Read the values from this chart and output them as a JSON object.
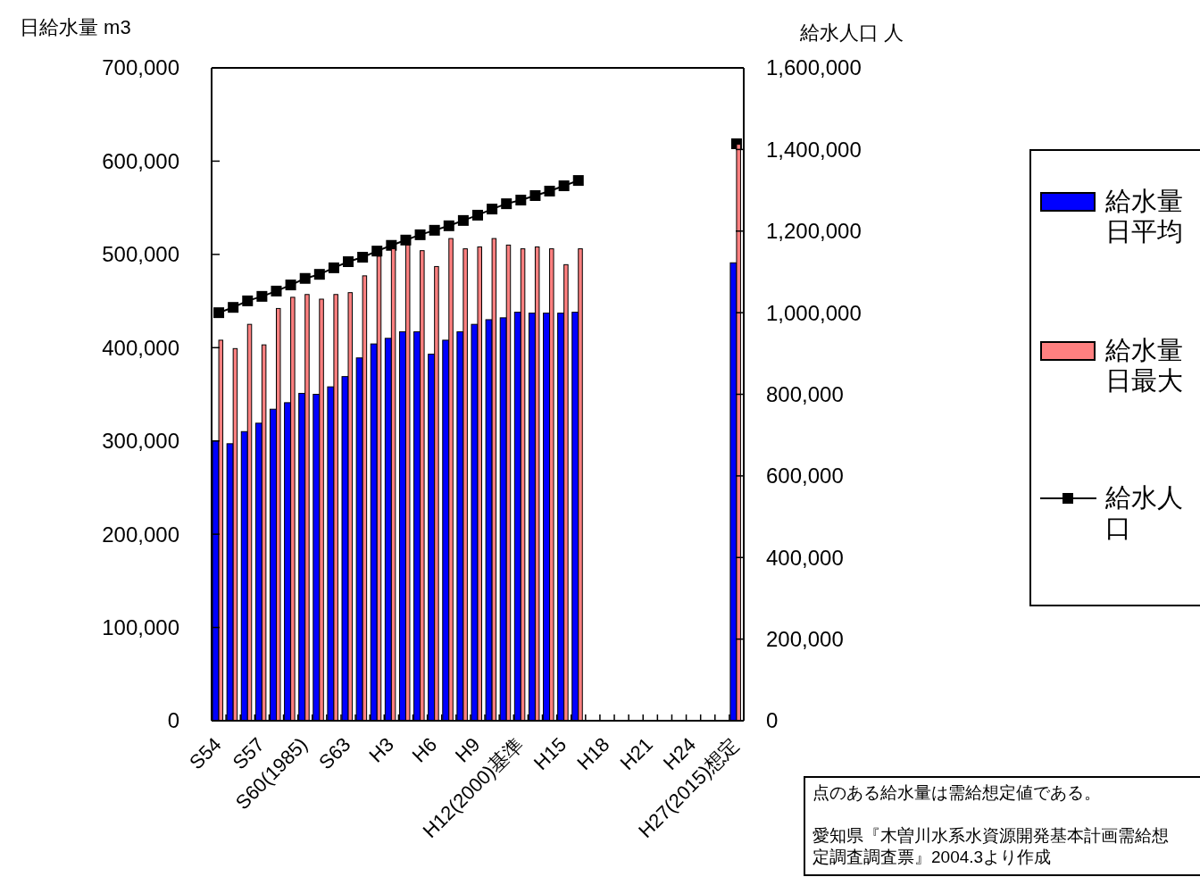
{
  "chart_data": {
    "type": "bar",
    "ylabel": "日給水量 m3",
    "y2label": "給水人口 人",
    "categories": [
      "S54",
      null,
      null,
      "S57",
      null,
      null,
      "S60(1985)",
      null,
      null,
      "S63",
      null,
      null,
      "H3",
      null,
      null,
      "H6",
      null,
      null,
      "H9",
      null,
      null,
      "H12(2000)基準",
      null,
      null,
      "H15",
      null,
      null,
      "H18",
      null,
      null,
      "H21",
      null,
      null,
      "H24",
      null,
      null,
      "H27(2015)想定"
    ],
    "series": [
      {
        "name": "給水量日平均",
        "color": "#0000ff",
        "values": [
          300000,
          297000,
          310000,
          319000,
          334000,
          341000,
          351000,
          350000,
          358000,
          369000,
          389000,
          404000,
          410000,
          417000,
          417000,
          393000,
          408000,
          417000,
          425000,
          430000,
          432000,
          438000,
          437000,
          437000,
          437000,
          438000,
          null,
          null,
          null,
          null,
          null,
          null,
          null,
          null,
          null,
          null,
          491000
        ]
      },
      {
        "name": "給水量日最大",
        "color": "#ff8080",
        "values": [
          408000,
          399000,
          425000,
          403000,
          442000,
          454000,
          457000,
          452000,
          457000,
          459000,
          477000,
          498000,
          506000,
          510000,
          504000,
          487000,
          517000,
          506000,
          508000,
          517000,
          510000,
          506000,
          508000,
          506000,
          489000,
          506000,
          null,
          null,
          null,
          null,
          null,
          null,
          null,
          null,
          null,
          null,
          618000
        ]
      },
      {
        "name": "給水人口",
        "type": "line",
        "axis": "y2",
        "color": "#000000",
        "values": [
          1000000,
          1013000,
          1029000,
          1040000,
          1053000,
          1068000,
          1084000,
          1094000,
          1110000,
          1125000,
          1136000,
          1151000,
          1165000,
          1178000,
          1191000,
          1202000,
          1213000,
          1226000,
          1239000,
          1254000,
          1267000,
          1276000,
          1287000,
          1298000,
          1311000,
          1324000,
          null,
          null,
          null,
          null,
          null,
          null,
          null,
          null,
          null,
          null,
          1414000
        ]
      }
    ],
    "ylim": [
      0,
      700000
    ],
    "yticks": [
      {
        "value": 0,
        "label": "0"
      },
      {
        "value": 100000,
        "label": "100,000"
      },
      {
        "value": 200000,
        "label": "200,000"
      },
      {
        "value": 300000,
        "label": "300,000"
      },
      {
        "value": 400000,
        "label": "400,000"
      },
      {
        "value": 500000,
        "label": "500,000"
      },
      {
        "value": 600000,
        "label": "600,000"
      },
      {
        "value": 700000,
        "label": "700,000"
      }
    ],
    "y2lim": [
      0,
      1600000
    ],
    "y2ticks": [
      {
        "value": 0,
        "label": "0"
      },
      {
        "value": 200000,
        "label": "200,000"
      },
      {
        "value": 400000,
        "label": "400,000"
      },
      {
        "value": 600000,
        "label": "600,000"
      },
      {
        "value": 800000,
        "label": "800,000"
      },
      {
        "value": 1000000,
        "label": "1,000,000"
      },
      {
        "value": 1200000,
        "label": "1,200,000"
      },
      {
        "value": 1400000,
        "label": "1,400,000"
      },
      {
        "value": 1600000,
        "label": "1,600,000"
      }
    ],
    "marker": "square",
    "grid": false,
    "legend": "right",
    "annotations": [
      "点のある給水量は需給想定値である。",
      "愛知県『木曽川水系水資源開発基本計画需給想定調査調査票』2004.3より作成"
    ]
  }
}
